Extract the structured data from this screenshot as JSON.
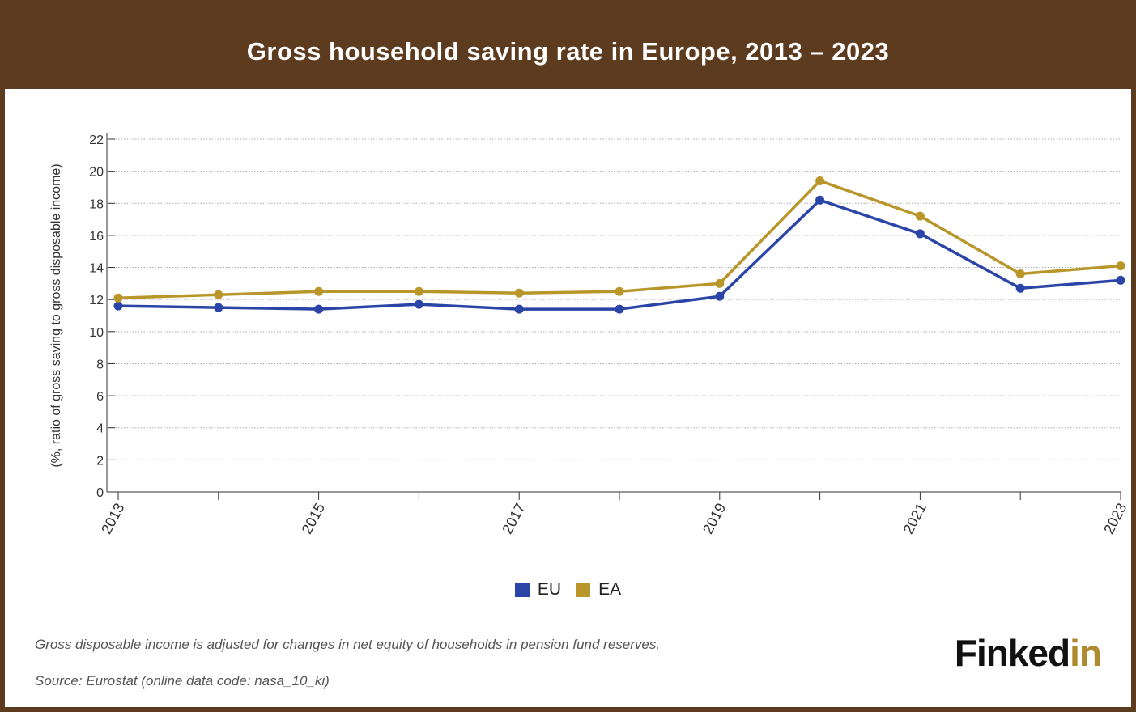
{
  "title": "Gross household saving rate in Europe, 2013 – 2023",
  "colors": {
    "frame": "#5c3b1e",
    "eu": "#2b44a8",
    "ea": "#b8962a",
    "logo_accent": "#b08a2e"
  },
  "chart_data": {
    "type": "line",
    "x": [
      2013,
      2014,
      2015,
      2016,
      2017,
      2018,
      2019,
      2020,
      2021,
      2022,
      2023
    ],
    "x_tick_labels": [
      "2013",
      "2015",
      "2017",
      "2019",
      "2021",
      "2023"
    ],
    "ylabel": "(%, ratio of gross saving to gross disposable income)",
    "ylim": [
      0,
      22
    ],
    "y_ticks": [
      0,
      2,
      4,
      6,
      8,
      10,
      12,
      14,
      16,
      18,
      20,
      22
    ],
    "grid": true,
    "legend_position": "bottom-center",
    "series": [
      {
        "name": "EU",
        "color": "#2b44a8",
        "values": [
          11.6,
          11.5,
          11.4,
          11.7,
          11.4,
          11.4,
          12.2,
          18.2,
          16.1,
          12.7,
          13.2
        ]
      },
      {
        "name": "EA",
        "color": "#b8962a",
        "values": [
          12.1,
          12.3,
          12.5,
          12.5,
          12.4,
          12.5,
          13.0,
          19.4,
          17.2,
          13.6,
          14.1
        ]
      }
    ]
  },
  "footnote": "Gross disposable income is adjusted for changes in net equity of households in pension fund reserves.",
  "source": "Source: Eurostat (online data code: nasa_10_ki)",
  "logo": {
    "part1": "Finked",
    "part2": "in"
  }
}
